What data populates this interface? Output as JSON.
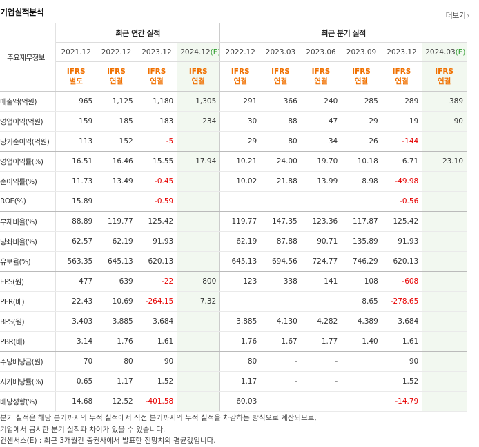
{
  "title": "기업실적분석",
  "more_label": "더보기",
  "header": {
    "row_label": "주요재무정보",
    "annual_group": "최근 연간 실적",
    "quarter_group": "최근 분기 실적",
    "annual_periods": [
      "2021.12",
      "2022.12",
      "2023.12",
      "2024.12"
    ],
    "annual_est_mark": "(E)",
    "quarter_periods": [
      "2022.12",
      "2023.03",
      "2023.06",
      "2023.09",
      "2023.12",
      "2024.03"
    ],
    "quarter_est_mark": "(E)",
    "ifrs_top": "IFRS",
    "ifrs_types": [
      "별도",
      "연결",
      "연결",
      "연결",
      "연결",
      "연결",
      "연결",
      "연결",
      "연결",
      "연결"
    ]
  },
  "rows": [
    {
      "label": "매출액(억원)",
      "values": [
        "965",
        "1,125",
        "1,180",
        "1,305",
        "291",
        "366",
        "240",
        "285",
        "289",
        "389"
      ]
    },
    {
      "label": "영업이익(억원)",
      "values": [
        "159",
        "185",
        "183",
        "234",
        "30",
        "88",
        "47",
        "29",
        "19",
        "90"
      ]
    },
    {
      "label": "당기순이익(억원)",
      "values": [
        "113",
        "152",
        "-5",
        "",
        "29",
        "80",
        "34",
        "26",
        "-144",
        ""
      ]
    },
    {
      "label": "영업이익률(%)",
      "values": [
        "16.51",
        "16.46",
        "15.55",
        "17.94",
        "10.21",
        "24.00",
        "19.70",
        "10.18",
        "6.71",
        "23.10"
      ]
    },
    {
      "label": "순이익률(%)",
      "values": [
        "11.73",
        "13.49",
        "-0.45",
        "",
        "10.02",
        "21.88",
        "13.99",
        "8.98",
        "-49.98",
        ""
      ]
    },
    {
      "label": "ROE(%)",
      "values": [
        "15.89",
        "",
        "-0.59",
        "",
        "",
        "",
        "",
        "",
        "-0.56",
        ""
      ]
    },
    {
      "label": "부채비율(%)",
      "values": [
        "88.89",
        "119.77",
        "125.42",
        "",
        "119.77",
        "147.35",
        "123.36",
        "117.87",
        "125.42",
        ""
      ]
    },
    {
      "label": "당좌비율(%)",
      "values": [
        "62.57",
        "62.19",
        "91.93",
        "",
        "62.19",
        "87.88",
        "90.71",
        "135.89",
        "91.93",
        ""
      ]
    },
    {
      "label": "유보율(%)",
      "values": [
        "563.35",
        "645.13",
        "620.13",
        "",
        "645.13",
        "694.56",
        "724.77",
        "746.29",
        "620.13",
        ""
      ]
    },
    {
      "label": "EPS(원)",
      "values": [
        "477",
        "639",
        "-22",
        "800",
        "123",
        "338",
        "141",
        "108",
        "-608",
        ""
      ]
    },
    {
      "label": "PER(배)",
      "values": [
        "22.43",
        "10.69",
        "-264.15",
        "7.32",
        "",
        "",
        "",
        "8.65",
        "-278.65",
        ""
      ]
    },
    {
      "label": "BPS(원)",
      "values": [
        "3,403",
        "3,885",
        "3,684",
        "",
        "3,885",
        "4,130",
        "4,282",
        "4,389",
        "3,684",
        ""
      ]
    },
    {
      "label": "PBR(배)",
      "values": [
        "3.14",
        "1.76",
        "1.61",
        "",
        "1.76",
        "1.67",
        "1.77",
        "1.40",
        "1.61",
        ""
      ]
    },
    {
      "label": "주당배당금(원)",
      "values": [
        "70",
        "80",
        "90",
        "",
        "80",
        "-",
        "-",
        "",
        "90",
        ""
      ]
    },
    {
      "label": "시가배당률(%)",
      "values": [
        "0.65",
        "1.17",
        "1.52",
        "",
        "1.17",
        "-",
        "-",
        "",
        "1.52",
        ""
      ]
    },
    {
      "label": "배당성향(%)",
      "values": [
        "14.68",
        "12.52",
        "-401.58",
        "",
        "60.03",
        "",
        "",
        "",
        "-14.79",
        ""
      ]
    }
  ],
  "notes": [
    "분기 실적은 해당 분기까지의 누적 실적에서 직전 분기까지의 누적 실적을 차감하는 방식으로 계산되므로,",
    "기업에서 공시한 분기 실적과 차이가 있을 수 있습니다.",
    "컨센서스(E) : 최근 3개월간 증권사에서 발표한 전망치의 평균값입니다."
  ],
  "colors": {
    "ifrs": "#f07000",
    "negative": "#e60000",
    "estimate_bg": "#f2f8f0",
    "est_mark": "#2a9a2a"
  }
}
